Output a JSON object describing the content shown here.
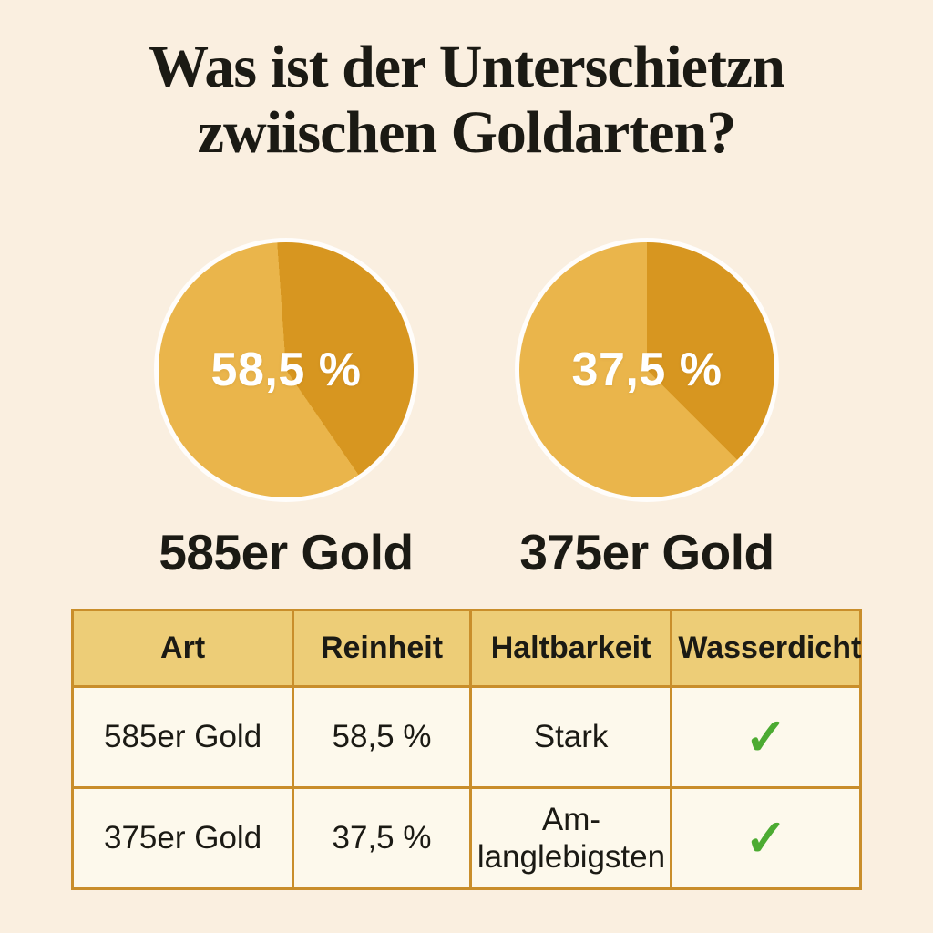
{
  "title": {
    "line1": "Was ist der Unterschietzn",
    "line2": "zwiischen Goldarten?"
  },
  "colors": {
    "background": "#FAEFE0",
    "text_dark": "#1B1A14",
    "pie_light": "#EAB54B",
    "pie_dark": "#D79620",
    "table_header_bg": "#EDCD77",
    "table_cell_bg": "#FDF9EC",
    "table_border": "#C98E2B",
    "table_outer_border": "#B97A1E",
    "check_green": "#4CAB32",
    "pie_label_color": "#FFFFFF"
  },
  "chart_data": [
    {
      "type": "pie",
      "title": "585er Gold",
      "center_label": "58,5 %",
      "start_angle_deg": -4,
      "legend_position": "none",
      "slices": [
        {
          "value": 41.5,
          "color": "#D79620"
        },
        {
          "value": 58.5,
          "color": "#EAB54B"
        }
      ]
    },
    {
      "type": "pie",
      "title": "375er Gold",
      "center_label": "37,5 %",
      "start_angle_deg": 0,
      "legend_position": "none",
      "slices": [
        {
          "value": 37.5,
          "color": "#D79620"
        },
        {
          "value": 62.5,
          "color": "#EAB54B"
        }
      ]
    },
    {
      "type": "table",
      "columns": [
        "Art",
        "Reinheit",
        "Haltbarkeit",
        "Wasserdicht"
      ],
      "rows": [
        [
          "585er Gold",
          "58,5 %",
          "Stark",
          "✓"
        ],
        [
          "375er Gold",
          "37,5 %",
          "Am-langlebigsten",
          "✓"
        ]
      ]
    }
  ]
}
